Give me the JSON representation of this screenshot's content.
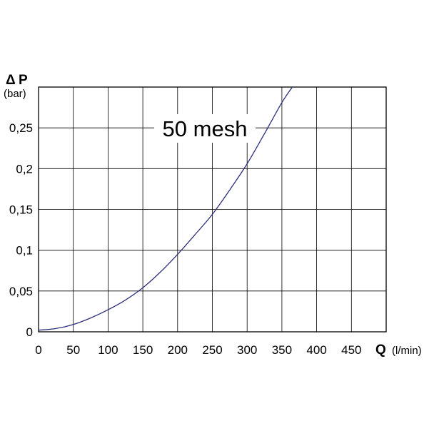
{
  "chart_data": {
    "type": "line",
    "title": "",
    "annotation": "50 mesh",
    "xlabel": "Q",
    "xunit": "(l/min)",
    "ylabel": "P",
    "ylabel_symbol": "Δ",
    "yunit": "(bar)",
    "xlim": [
      0,
      500
    ],
    "ylim": [
      0,
      0.3
    ],
    "grid": true,
    "xticks": [
      0,
      50,
      100,
      150,
      200,
      250,
      300,
      350,
      400,
      450
    ],
    "xtick_labels": [
      "0",
      "50",
      "100",
      "150",
      "200",
      "250",
      "300",
      "350",
      "400",
      "450"
    ],
    "yticks": [
      0,
      0.05,
      0.1,
      0.15,
      0.2,
      0.25
    ],
    "ytick_labels": [
      "0",
      "0,05",
      "0,1",
      "0,15",
      "0,2",
      "0,25"
    ],
    "series": [
      {
        "color": "#2b2f7a",
        "x": [
          0,
          25,
          50,
          75,
          100,
          125,
          150,
          175,
          200,
          225,
          250,
          275,
          300,
          325,
          350,
          365
        ],
        "y": [
          0.002,
          0.004,
          0.009,
          0.017,
          0.027,
          0.039,
          0.054,
          0.073,
          0.095,
          0.119,
          0.144,
          0.174,
          0.206,
          0.243,
          0.281,
          0.3
        ]
      }
    ]
  }
}
